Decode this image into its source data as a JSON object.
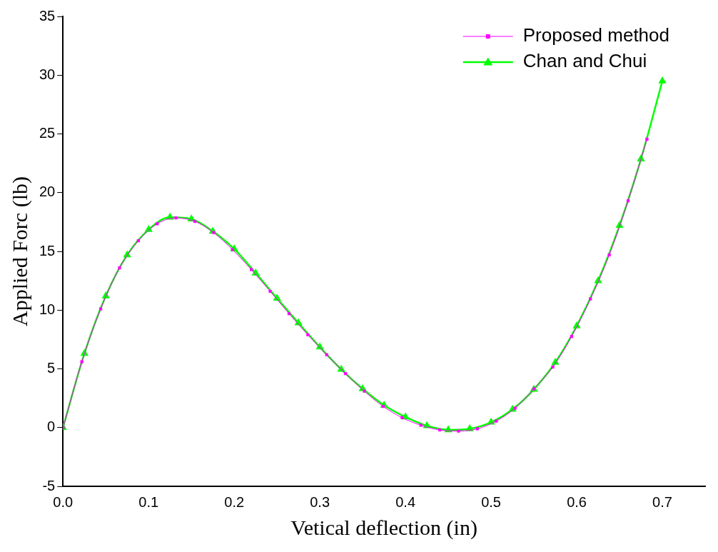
{
  "chart_data": {
    "type": "line",
    "xlabel": "Vetical deflection (in)",
    "ylabel": "Applied Forc (lb)",
    "xlim": [
      0,
      0.75
    ],
    "xticks": [
      {
        "value": 0,
        "label": "0.0"
      },
      0.1,
      0.2,
      0.3,
      0.4,
      0.5,
      0.6,
      0.7
    ],
    "ylim": [
      -5,
      35
    ],
    "yticks": [
      -5,
      0,
      5,
      10,
      15,
      20,
      25,
      30,
      35
    ],
    "grid": false,
    "legend": "top right",
    "series": [
      {
        "name": "Proposed method",
        "color": "#ff00ff",
        "marker": "square",
        "x": [
          0,
          0.022,
          0.044,
          0.066,
          0.088,
          0.11,
          0.132,
          0.154,
          0.176,
          0.198,
          0.22,
          0.242,
          0.264,
          0.286,
          0.308,
          0.33,
          0.352,
          0.374,
          0.396,
          0.418,
          0.44,
          0.462,
          0.484,
          0.506,
          0.528,
          0.55,
          0.572,
          0.594,
          0.616,
          0.638,
          0.66,
          0.682
        ],
        "values": [
          0,
          5.6,
          10.1,
          13.6,
          15.9,
          17.35,
          17.85,
          17.55,
          16.6,
          15.15,
          13.45,
          11.6,
          9.7,
          7.9,
          6.2,
          4.6,
          3.1,
          1.8,
          0.85,
          0.2,
          -0.2,
          -0.3,
          -0.1,
          0.55,
          1.65,
          3.3,
          5.15,
          7.75,
          10.95,
          14.7,
          19.3,
          24.55
        ]
      },
      {
        "name": "Chan and Chui",
        "color": "#00ff00",
        "marker": "triangle",
        "x": [
          0,
          0.025,
          0.05,
          0.075,
          0.1,
          0.125,
          0.15,
          0.175,
          0.2,
          0.225,
          0.25,
          0.275,
          0.3,
          0.325,
          0.35,
          0.375,
          0.4,
          0.425,
          0.45,
          0.475,
          0.5,
          0.525,
          0.55,
          0.575,
          0.6,
          0.625,
          0.65,
          0.675,
          0.7
        ],
        "values": [
          0,
          6.3,
          11.2,
          14.7,
          16.85,
          17.9,
          17.75,
          16.7,
          15.2,
          13.15,
          11.0,
          8.9,
          6.85,
          4.95,
          3.3,
          1.9,
          0.9,
          0.15,
          -0.2,
          -0.1,
          0.45,
          1.55,
          3.25,
          5.55,
          8.65,
          12.5,
          17.2,
          22.85,
          29.5
        ]
      }
    ]
  }
}
